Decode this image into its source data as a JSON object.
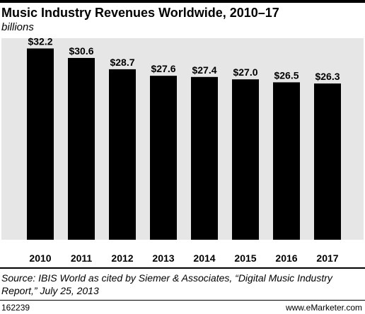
{
  "header": {
    "title": "Music Industry Revenues Worldwide, 2010–17",
    "subtitle": "billions"
  },
  "chart_data": {
    "type": "bar",
    "title": "Music Industry Revenues Worldwide, 2010–17",
    "subtitle": "billions",
    "categories": [
      "2010",
      "2011",
      "2012",
      "2013",
      "2014",
      "2015",
      "2016",
      "2017"
    ],
    "values": [
      32.2,
      30.6,
      28.7,
      27.6,
      27.4,
      27.0,
      26.5,
      26.3
    ],
    "value_labels": [
      "$32.2",
      "$30.6",
      "$28.7",
      "$27.6",
      "$27.4",
      "$27.0",
      "$26.5",
      "$26.3"
    ],
    "ylim": [
      0,
      34
    ],
    "bar_color": "#000000",
    "plot_background": "#e6e6e6",
    "grid": false,
    "legend": "none"
  },
  "footer": {
    "source": "Source: IBIS World as cited by Siemer & Associates, “Digital Music Industry Report,” July 25, 2013",
    "chart_id": "162239",
    "brand": "www.eMarketer.com"
  }
}
